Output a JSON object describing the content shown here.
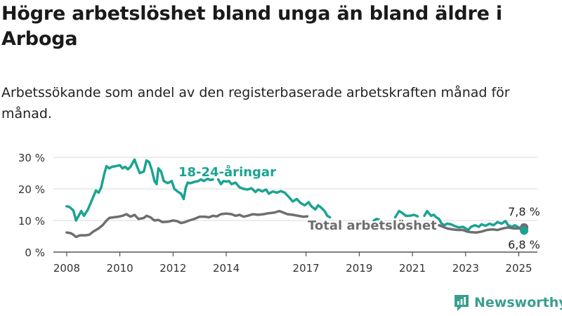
{
  "title": "Högre arbetslöshet bland unga än bland äldre i Arboga",
  "subtitle": "Arbetssökande som andel av den registerbaserade arbetskraften månad för månad.",
  "brand": {
    "name": "Newsworthy",
    "color": "#3a9e8e"
  },
  "chart_data": {
    "type": "line",
    "ylim": [
      0,
      30
    ],
    "yticks": [
      0,
      10,
      20,
      30
    ],
    "ytick_labels": [
      "0 %",
      "10 %",
      "20 %",
      "30 %"
    ],
    "xlim": [
      2007.5,
      2025.7
    ],
    "xticks": [
      2008,
      2010,
      2012,
      2014,
      2017,
      2019,
      2021,
      2023,
      2025
    ],
    "xtick_labels": [
      "2008",
      "2010",
      "2012",
      "2014",
      "2017",
      "2019",
      "2021",
      "2023",
      "2025"
    ],
    "grid": true,
    "series": [
      {
        "name": "18-24-åringar",
        "color": "#1ba392",
        "end_label": "6,8 %",
        "segments": [
          [
            [
              2008.0,
              14.5
            ],
            [
              2008.1,
              14.3
            ],
            [
              2008.25,
              13.2
            ],
            [
              2008.35,
              10.0
            ],
            [
              2008.45,
              11.5
            ],
            [
              2008.55,
              13.0
            ],
            [
              2008.65,
              11.5
            ],
            [
              2008.8,
              13.5
            ],
            [
              2008.9,
              15.5
            ],
            [
              2009.0,
              17.5
            ],
            [
              2009.1,
              19.5
            ],
            [
              2009.2,
              18.8
            ],
            [
              2009.3,
              20.5
            ],
            [
              2009.42,
              25.0
            ],
            [
              2009.5,
              27.2
            ],
            [
              2009.6,
              26.5
            ],
            [
              2009.7,
              27.0
            ],
            [
              2009.85,
              27.2
            ],
            [
              2010.0,
              27.5
            ],
            [
              2010.1,
              26.5
            ],
            [
              2010.2,
              27.0
            ],
            [
              2010.3,
              26.2
            ],
            [
              2010.4,
              27.0
            ],
            [
              2010.55,
              29.3
            ],
            [
              2010.65,
              27.0
            ],
            [
              2010.75,
              25.0
            ],
            [
              2010.9,
              25.5
            ],
            [
              2011.0,
              29.0
            ],
            [
              2011.1,
              28.5
            ],
            [
              2011.2,
              26.0
            ],
            [
              2011.3,
              22.5
            ],
            [
              2011.38,
              21.5
            ],
            [
              2011.45,
              26.5
            ],
            [
              2011.55,
              25.5
            ],
            [
              2011.65,
              22.5
            ],
            [
              2011.8,
              21.8
            ],
            [
              2011.95,
              22.5
            ],
            [
              2012.05,
              20.0
            ],
            [
              2012.2,
              19.0
            ],
            [
              2012.3,
              18.5
            ],
            [
              2012.4,
              16.8
            ],
            [
              2012.48,
              20.5
            ],
            [
              2012.55,
              22.0
            ],
            [
              2012.65,
              21.8
            ],
            [
              2012.8,
              22.2
            ],
            [
              2012.95,
              22.5
            ],
            [
              2013.05,
              23.0
            ],
            [
              2013.15,
              22.5
            ],
            [
              2013.3,
              23.2
            ],
            [
              2013.4,
              22.8
            ],
            [
              2013.5,
              23.0
            ]
          ],
          [
            [
              2013.7,
              23.0
            ],
            [
              2013.8,
              21.5
            ],
            [
              2013.9,
              22.5
            ],
            [
              2014.0,
              22.3
            ],
            [
              2014.1,
              22.5
            ],
            [
              2014.2,
              21.5
            ],
            [
              2014.35,
              22.0
            ],
            [
              2014.5,
              20.5
            ],
            [
              2014.65,
              20.0
            ],
            [
              2014.8,
              19.8
            ],
            [
              2014.95,
              20.2
            ],
            [
              2015.1,
              19.0
            ],
            [
              2015.2,
              19.8
            ],
            [
              2015.35,
              19.2
            ],
            [
              2015.5,
              19.8
            ],
            [
              2015.6,
              18.5
            ],
            [
              2015.75,
              19.2
            ],
            [
              2015.9,
              18.8
            ],
            [
              2016.05,
              19.3
            ],
            [
              2016.2,
              18.8
            ],
            [
              2016.35,
              17.5
            ],
            [
              2016.5,
              16.0
            ],
            [
              2016.65,
              16.8
            ],
            [
              2016.8,
              15.5
            ],
            [
              2016.95,
              14.8
            ],
            [
              2017.1,
              15.8
            ],
            [
              2017.2,
              14.5
            ],
            [
              2017.35,
              13.5
            ],
            [
              2017.45,
              14.8
            ],
            [
              2017.55,
              14.2
            ],
            [
              2017.7,
              13.0
            ],
            [
              2017.8,
              11.5
            ],
            [
              2017.9,
              11.0
            ]
          ],
          [
            [
              2019.55,
              10.0
            ],
            [
              2019.65,
              10.5
            ],
            [
              2019.75,
              10.3
            ]
          ],
          [
            [
              2020.35,
              11.0
            ],
            [
              2020.5,
              13.0
            ],
            [
              2020.6,
              12.5
            ],
            [
              2020.75,
              11.5
            ],
            [
              2020.9,
              11.5
            ],
            [
              2021.05,
              11.8
            ],
            [
              2021.2,
              11.3
            ]
          ],
          [
            [
              2021.45,
              11.5
            ],
            [
              2021.55,
              13.0
            ],
            [
              2021.7,
              11.5
            ],
            [
              2021.8,
              11.8
            ],
            [
              2021.9,
              11.0
            ],
            [
              2022.0,
              10.5
            ],
            [
              2022.1,
              9.0
            ],
            [
              2022.2,
              8.5
            ],
            [
              2022.3,
              9.0
            ],
            [
              2022.45,
              8.8
            ],
            [
              2022.6,
              8.2
            ],
            [
              2022.75,
              7.8
            ],
            [
              2022.9,
              8.0
            ],
            [
              2023.0,
              7.5
            ],
            [
              2023.1,
              7.0
            ],
            [
              2023.2,
              8.0
            ],
            [
              2023.35,
              8.5
            ],
            [
              2023.5,
              8.0
            ],
            [
              2023.6,
              8.8
            ],
            [
              2023.75,
              8.3
            ],
            [
              2023.9,
              9.0
            ],
            [
              2024.05,
              8.5
            ],
            [
              2024.2,
              9.5
            ],
            [
              2024.35,
              9.0
            ],
            [
              2024.5,
              9.8
            ],
            [
              2024.6,
              8.5
            ],
            [
              2024.75,
              8.0
            ],
            [
              2024.85,
              8.5
            ],
            [
              2025.0,
              7.8
            ],
            [
              2025.1,
              7.0
            ],
            [
              2025.2,
              6.8
            ]
          ]
        ]
      },
      {
        "name": "Total arbetslöshet",
        "color": "#6e6e6e",
        "end_label": "7,8 %",
        "segments": [
          [
            [
              2008.0,
              6.2
            ],
            [
              2008.15,
              6.0
            ],
            [
              2008.25,
              5.5
            ],
            [
              2008.35,
              4.8
            ],
            [
              2008.5,
              5.3
            ],
            [
              2008.7,
              5.3
            ],
            [
              2008.85,
              5.5
            ],
            [
              2009.0,
              6.5
            ],
            [
              2009.2,
              7.5
            ],
            [
              2009.35,
              8.5
            ],
            [
              2009.5,
              10.0
            ],
            [
              2009.6,
              10.8
            ],
            [
              2009.75,
              11.0
            ],
            [
              2009.95,
              11.2
            ],
            [
              2010.1,
              11.5
            ],
            [
              2010.25,
              12.0
            ],
            [
              2010.4,
              11.2
            ],
            [
              2010.55,
              11.8
            ],
            [
              2010.7,
              10.5
            ],
            [
              2010.9,
              10.8
            ],
            [
              2011.0,
              11.5
            ],
            [
              2011.15,
              11.0
            ],
            [
              2011.3,
              10.0
            ],
            [
              2011.45,
              10.2
            ],
            [
              2011.6,
              9.5
            ],
            [
              2011.8,
              9.6
            ],
            [
              2012.0,
              10.0
            ],
            [
              2012.15,
              9.8
            ],
            [
              2012.3,
              9.2
            ],
            [
              2012.45,
              9.5
            ],
            [
              2012.6,
              10.0
            ],
            [
              2012.8,
              10.5
            ],
            [
              2013.0,
              11.2
            ],
            [
              2013.2,
              11.2
            ],
            [
              2013.35,
              11.0
            ],
            [
              2013.5,
              11.5
            ],
            [
              2013.65,
              11.3
            ],
            [
              2013.8,
              12.0
            ],
            [
              2014.0,
              12.2
            ],
            [
              2014.2,
              12.0
            ],
            [
              2014.35,
              11.5
            ],
            [
              2014.5,
              11.8
            ],
            [
              2014.65,
              11.2
            ],
            [
              2014.8,
              11.5
            ],
            [
              2015.0,
              12.0
            ],
            [
              2015.2,
              11.8
            ],
            [
              2015.4,
              12.0
            ],
            [
              2015.6,
              12.3
            ],
            [
              2015.8,
              12.5
            ],
            [
              2016.0,
              13.0
            ],
            [
              2016.15,
              12.5
            ],
            [
              2016.3,
              12.0
            ],
            [
              2016.5,
              11.8
            ],
            [
              2016.7,
              11.5
            ],
            [
              2016.9,
              11.2
            ],
            [
              2017.05,
              11.3
            ]
          ],
          [
            [
              2022.0,
              8.5
            ],
            [
              2022.15,
              8.0
            ],
            [
              2022.3,
              7.5
            ],
            [
              2022.5,
              7.2
            ],
            [
              2022.7,
              7.0
            ],
            [
              2022.9,
              7.0
            ],
            [
              2023.05,
              6.5
            ],
            [
              2023.2,
              6.3
            ],
            [
              2023.4,
              6.2
            ],
            [
              2023.6,
              6.5
            ],
            [
              2023.8,
              7.0
            ],
            [
              2024.0,
              7.2
            ],
            [
              2024.2,
              7.0
            ],
            [
              2024.4,
              7.5
            ],
            [
              2024.6,
              7.8
            ],
            [
              2024.8,
              7.5
            ],
            [
              2025.0,
              7.5
            ],
            [
              2025.2,
              7.8
            ]
          ]
        ]
      }
    ],
    "annotations": [
      {
        "text": "18-24-åringar",
        "series": "18-24-åringar"
      },
      {
        "text": "Total arbetslöshet",
        "series": "Total arbetslöshet"
      }
    ]
  }
}
